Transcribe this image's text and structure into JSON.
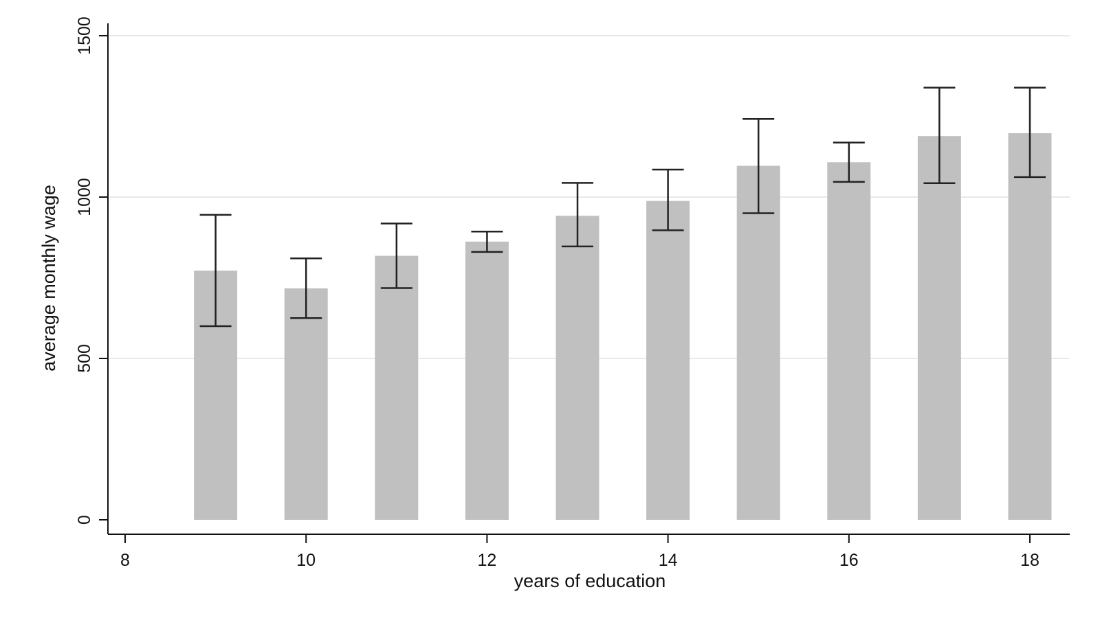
{
  "chart_data": {
    "type": "bar",
    "title": "",
    "xlabel": "years of education",
    "ylabel": "average monthly wage",
    "x": [
      9,
      10,
      11,
      12,
      13,
      14,
      15,
      16,
      17,
      18
    ],
    "values": [
      772,
      717,
      818,
      862,
      942,
      988,
      1097,
      1108,
      1189,
      1198
    ],
    "ci_low": [
      600,
      625,
      718,
      830,
      847,
      897,
      950,
      1047,
      1043,
      1062
    ],
    "ci_high": [
      945,
      810,
      918,
      893,
      1044,
      1085,
      1242,
      1169,
      1339,
      1339
    ],
    "xlim": [
      8,
      18.45
    ],
    "ylim": [
      0,
      1500
    ],
    "xticks": [
      8,
      10,
      12,
      14,
      16,
      18
    ],
    "yticks": [
      0,
      500,
      1000,
      1500
    ],
    "grid": true,
    "bar_color": "#c0c0c0",
    "error_bar_color": "#222222",
    "grid_color": "#e3ece8"
  }
}
